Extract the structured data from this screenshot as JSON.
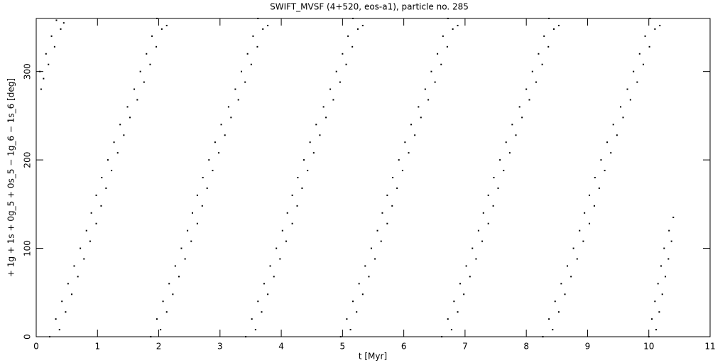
{
  "chart_data": {
    "type": "scatter",
    "title": "SWIFT_MVSF (4+520, eos-a1), particle no. 285",
    "xlabel": "t [Myr]",
    "ylabel": "+ 1g + 1s + 0g_5 + 0s_5 − 1g_6 − 1s_6 [deg]",
    "xlim": [
      0,
      11
    ],
    "ylim": [
      0,
      360
    ],
    "xticks": [
      0,
      1,
      2,
      3,
      4,
      5,
      6,
      7,
      8,
      9,
      10,
      11
    ],
    "yticks": [
      0,
      100,
      200,
      300
    ],
    "color": "#000000",
    "x": [
      0.08,
      0.12,
      0.06,
      0.2,
      0.16,
      0.3,
      0.25,
      0.4,
      0.33,
      0.45,
      0.22,
      0.38,
      0.32,
      0.48,
      0.42,
      0.58,
      0.52,
      0.68,
      0.62,
      0.78,
      0.72,
      0.88,
      0.82,
      0.98,
      0.9,
      1.06,
      0.98,
      1.14,
      1.07,
      1.23,
      1.17,
      1.33,
      1.27,
      1.43,
      1.37,
      1.53,
      1.49,
      1.65,
      1.6,
      1.76,
      1.7,
      1.86,
      1.8,
      1.96,
      1.89,
      2.05,
      1.97,
      2.13,
      1.87,
      2.03,
      1.97,
      2.13,
      2.07,
      2.23,
      2.17,
      2.33,
      2.27,
      2.43,
      2.37,
      2.53,
      2.47,
      2.63,
      2.55,
      2.71,
      2.63,
      2.79,
      2.72,
      2.88,
      2.82,
      2.98,
      2.92,
      3.08,
      3.02,
      3.18,
      3.14,
      3.3,
      3.25,
      3.41,
      3.35,
      3.51,
      3.45,
      3.61,
      3.54,
      3.7,
      3.62,
      3.78,
      3.42,
      3.58,
      3.52,
      3.68,
      3.62,
      3.78,
      3.72,
      3.88,
      3.82,
      3.98,
      3.92,
      4.08,
      4.02,
      4.18,
      4.1,
      4.26,
      4.18,
      4.34,
      4.27,
      4.43,
      4.37,
      4.53,
      4.47,
      4.63,
      4.57,
      4.73,
      4.69,
      4.85,
      4.8,
      4.96,
      4.9,
      5.06,
      5.0,
      5.16,
      5.09,
      5.25,
      5.17,
      5.33,
      4.97,
      5.13,
      5.07,
      5.23,
      5.17,
      5.33,
      5.27,
      5.43,
      5.37,
      5.53,
      5.47,
      5.63,
      5.57,
      5.73,
      5.65,
      5.81,
      5.73,
      5.89,
      5.82,
      5.98,
      5.92,
      6.08,
      6.02,
      6.18,
      6.12,
      6.28,
      6.24,
      6.4,
      6.35,
      6.51,
      6.45,
      6.61,
      6.55,
      6.71,
      6.64,
      6.8,
      6.72,
      6.88,
      6.62,
      6.78,
      6.72,
      6.88,
      6.82,
      6.98,
      6.92,
      7.08,
      7.02,
      7.18,
      7.12,
      7.28,
      7.22,
      7.38,
      7.3,
      7.46,
      7.38,
      7.54,
      7.47,
      7.63,
      7.57,
      7.73,
      7.67,
      7.83,
      7.77,
      7.93,
      7.89,
      8.05,
      8.0,
      8.16,
      8.1,
      8.26,
      8.2,
      8.36,
      8.29,
      8.45,
      8.37,
      8.53,
      8.27,
      8.43,
      8.37,
      8.53,
      8.47,
      8.63,
      8.57,
      8.73,
      8.67,
      8.83,
      8.77,
      8.93,
      8.87,
      9.03,
      8.95,
      9.11,
      9.03,
      9.19,
      9.12,
      9.28,
      9.22,
      9.38,
      9.32,
      9.48,
      9.42,
      9.58,
      9.54,
      9.7,
      9.65,
      9.81,
      9.75,
      9.91,
      9.85,
      10.01,
      9.94,
      10.1,
      10.02,
      10.18,
      10.0,
      10.12,
      10.05,
      10.17,
      10.1,
      10.22,
      10.15,
      10.27,
      10.2,
      10.32,
      10.25,
      10.37,
      10.33,
      10.4
    ],
    "values": [
      280,
      292,
      300,
      308,
      320,
      328,
      340,
      348,
      358,
      355,
      0,
      8,
      20,
      28,
      40,
      48,
      60,
      68,
      80,
      88,
      100,
      108,
      120,
      128,
      140,
      148,
      160,
      168,
      180,
      188,
      200,
      208,
      220,
      228,
      240,
      248,
      260,
      268,
      280,
      288,
      300,
      308,
      320,
      328,
      340,
      348,
      360,
      352,
      0,
      8,
      20,
      28,
      40,
      48,
      60,
      68,
      80,
      88,
      100,
      108,
      120,
      128,
      140,
      148,
      160,
      168,
      180,
      188,
      200,
      208,
      220,
      228,
      240,
      248,
      260,
      268,
      280,
      288,
      300,
      308,
      320,
      328,
      340,
      348,
      360,
      352,
      0,
      8,
      20,
      28,
      40,
      48,
      60,
      68,
      80,
      88,
      100,
      108,
      120,
      128,
      140,
      148,
      160,
      168,
      180,
      188,
      200,
      208,
      220,
      228,
      240,
      248,
      260,
      268,
      280,
      288,
      300,
      308,
      320,
      328,
      340,
      348,
      360,
      352,
      0,
      8,
      20,
      28,
      40,
      48,
      60,
      68,
      80,
      88,
      100,
      108,
      120,
      128,
      140,
      148,
      160,
      168,
      180,
      188,
      200,
      208,
      220,
      228,
      240,
      248,
      260,
      268,
      280,
      288,
      300,
      308,
      320,
      328,
      340,
      348,
      360,
      352,
      0,
      8,
      20,
      28,
      40,
      48,
      60,
      68,
      80,
      88,
      100,
      108,
      120,
      128,
      140,
      148,
      160,
      168,
      180,
      188,
      200,
      208,
      220,
      228,
      240,
      248,
      260,
      268,
      280,
      288,
      300,
      308,
      320,
      328,
      340,
      348,
      360,
      352,
      0,
      8,
      20,
      28,
      40,
      48,
      60,
      68,
      80,
      88,
      100,
      108,
      120,
      128,
      140,
      148,
      160,
      168,
      180,
      188,
      200,
      208,
      220,
      228,
      240,
      248,
      260,
      268,
      280,
      288,
      300,
      308,
      320,
      328,
      340,
      348,
      360,
      352,
      0,
      8,
      20,
      28,
      40,
      48,
      60,
      68,
      80,
      88,
      100,
      108,
      120,
      135
    ]
  }
}
